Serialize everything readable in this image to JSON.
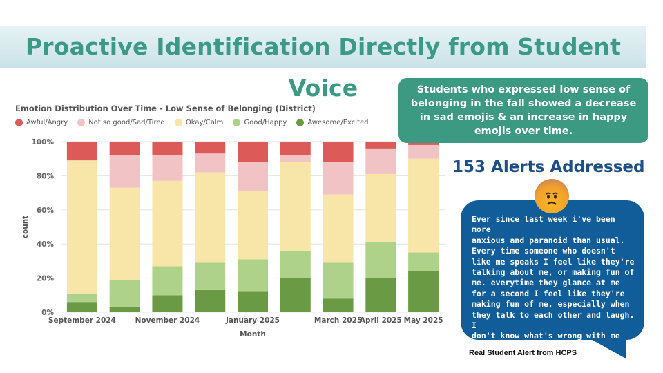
{
  "slide": {
    "title": "Proactive Identification Directly from Student Voice"
  },
  "callout": {
    "text": "Students who expressed low sense of belonging in the fall showed a decrease in sad emojis & an increase in happy emojis over time."
  },
  "alerts": {
    "heading": "153 Alerts Addressed"
  },
  "student_alert": {
    "lines": [
      "Ever since last week i've been more",
      "anxious and paranoid than usual.",
      "Every time someone who doesn't",
      "like me speaks I feel like they're",
      "talking about me, or making fun of",
      "me. everytime they glance at me",
      "for a second I feel like they're",
      "making fun of me, especially when",
      "they talk to each other and laugh. I",
      "don't know what's wrong with me"
    ],
    "caption": "Real Student Alert from HCPS",
    "emoji_icon": "anxious-face-icon"
  },
  "chart_data": {
    "type": "bar",
    "stacked": "percent",
    "title": "Emotion Distribution Over Time - Low Sense of Belonging (District)",
    "xlabel": "Month",
    "ylabel": "count",
    "ylim": [
      0,
      100
    ],
    "yticks": [
      "0%",
      "20%",
      "40%",
      "60%",
      "80%",
      "100%"
    ],
    "xtick_labels": [
      "September 2024",
      "",
      "November 2024",
      "",
      "January 2025",
      "",
      "March 2025",
      "April 2025",
      "May 2025"
    ],
    "legend_position": "top-left",
    "series": [
      {
        "name": "Awesome/Excited",
        "color": "#6a9a44",
        "values": [
          6,
          3,
          10,
          13,
          12,
          20,
          8,
          20,
          24
        ]
      },
      {
        "name": "Good/Happy",
        "color": "#afd28a",
        "values": [
          5,
          16,
          17,
          16,
          19,
          16,
          21,
          21,
          11
        ]
      },
      {
        "name": "Okay/Calm",
        "color": "#f8e6a8",
        "values": [
          78,
          54,
          50,
          53,
          40,
          52,
          40,
          40,
          55
        ]
      },
      {
        "name": "Not so good/Sad/Tired",
        "color": "#f2c3c5",
        "values": [
          0,
          19,
          15,
          11,
          17,
          4,
          19,
          15,
          8
        ]
      },
      {
        "name": "Awful/Angry",
        "color": "#dc5a58",
        "values": [
          11,
          8,
          8,
          7,
          12,
          8,
          12,
          4,
          2
        ]
      }
    ],
    "legend_order": [
      "Awful/Angry",
      "Not so good/Sad/Tired",
      "Okay/Calm",
      "Good/Happy",
      "Awesome/Excited"
    ]
  }
}
